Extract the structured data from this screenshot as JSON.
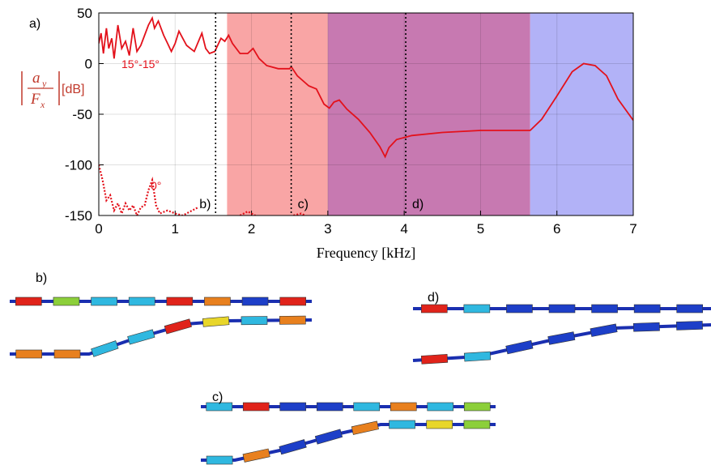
{
  "chart_data": {
    "type": "line",
    "panel_label": "a)",
    "xlabel": "Frequency [kHz]",
    "ylabel": {
      "num": "a",
      "num_sub": "y",
      "den": "F",
      "den_sub": "x",
      "unit": "[dB]"
    },
    "xlim": [
      0,
      7
    ],
    "xticks": [
      0,
      1,
      2,
      3,
      4,
      5,
      6,
      7
    ],
    "ylim": [
      -150,
      50
    ],
    "yticks": [
      50,
      0,
      -50,
      -100,
      -150
    ],
    "grid": true,
    "regions": [
      {
        "x0": 1.68,
        "x1": 3.0,
        "color": "#f9a5a5"
      },
      {
        "x0": 3.0,
        "x1": 5.65,
        "color": "#c779b1"
      },
      {
        "x0": 5.65,
        "x1": 7.0,
        "color": "#b2b2f7"
      }
    ],
    "markers": [
      {
        "x": 1.53,
        "label": "b)"
      },
      {
        "x": 2.52,
        "label": "c)"
      },
      {
        "x": 4.02,
        "label": "d)"
      }
    ],
    "series": [
      {
        "name": "15°-15°",
        "color": "#e3111b",
        "style": "solid",
        "x": [
          0.0,
          0.03,
          0.06,
          0.1,
          0.13,
          0.17,
          0.2,
          0.25,
          0.3,
          0.35,
          0.4,
          0.45,
          0.5,
          0.55,
          0.6,
          0.65,
          0.7,
          0.73,
          0.78,
          0.85,
          0.9,
          0.95,
          1.0,
          1.05,
          1.1,
          1.15,
          1.2,
          1.25,
          1.35,
          1.4,
          1.45,
          1.52,
          1.6,
          1.65,
          1.7,
          1.75,
          1.85,
          1.95,
          2.02,
          2.1,
          2.2,
          2.35,
          2.5,
          2.52,
          2.6,
          2.75,
          2.85,
          2.95,
          3.02,
          3.08,
          3.15,
          3.25,
          3.4,
          3.55,
          3.68,
          3.75,
          3.8,
          3.9,
          4.1,
          4.5,
          5.0,
          5.5,
          5.65,
          5.8,
          6.0,
          6.2,
          6.35,
          6.5,
          6.65,
          6.8,
          7.0
        ],
        "values": [
          20,
          30,
          10,
          35,
          15,
          25,
          5,
          38,
          15,
          22,
          8,
          35,
          12,
          18,
          28,
          38,
          45,
          35,
          42,
          28,
          20,
          12,
          20,
          32,
          25,
          18,
          15,
          12,
          30,
          15,
          10,
          12,
          25,
          22,
          28,
          20,
          10,
          10,
          15,
          5,
          -2,
          -5,
          -5,
          -3,
          -12,
          -22,
          -25,
          -40,
          -44,
          -38,
          -36,
          -45,
          -55,
          -68,
          -82,
          -92,
          -83,
          -75,
          -71,
          -68,
          -66,
          -66,
          -66,
          -55,
          -32,
          -8,
          0,
          -2,
          -12,
          -35,
          -56
        ]
      },
      {
        "name": "0°",
        "color": "#e3111b",
        "style": "dotted",
        "x": [
          0.0,
          0.05,
          0.1,
          0.15,
          0.2,
          0.25,
          0.3,
          0.35,
          0.4,
          0.45,
          0.5,
          0.55,
          0.6,
          0.65,
          0.7,
          0.75,
          0.8,
          0.9,
          1.0,
          1.1,
          1.2,
          1.3,
          1.5,
          1.85,
          1.95,
          2.05,
          2.3,
          2.55,
          2.65,
          2.7
        ],
        "values": [
          -100,
          -115,
          -135,
          -130,
          -145,
          -138,
          -148,
          -138,
          -145,
          -140,
          -150,
          -142,
          -140,
          -125,
          -115,
          -140,
          -148,
          -145,
          -148,
          -150,
          -146,
          -142,
          null,
          -150,
          -146,
          -150,
          null,
          -150,
          -148,
          -150
        ]
      }
    ]
  },
  "illustrations": {
    "labels": [
      "b)",
      "c)",
      "d)"
    ]
  }
}
